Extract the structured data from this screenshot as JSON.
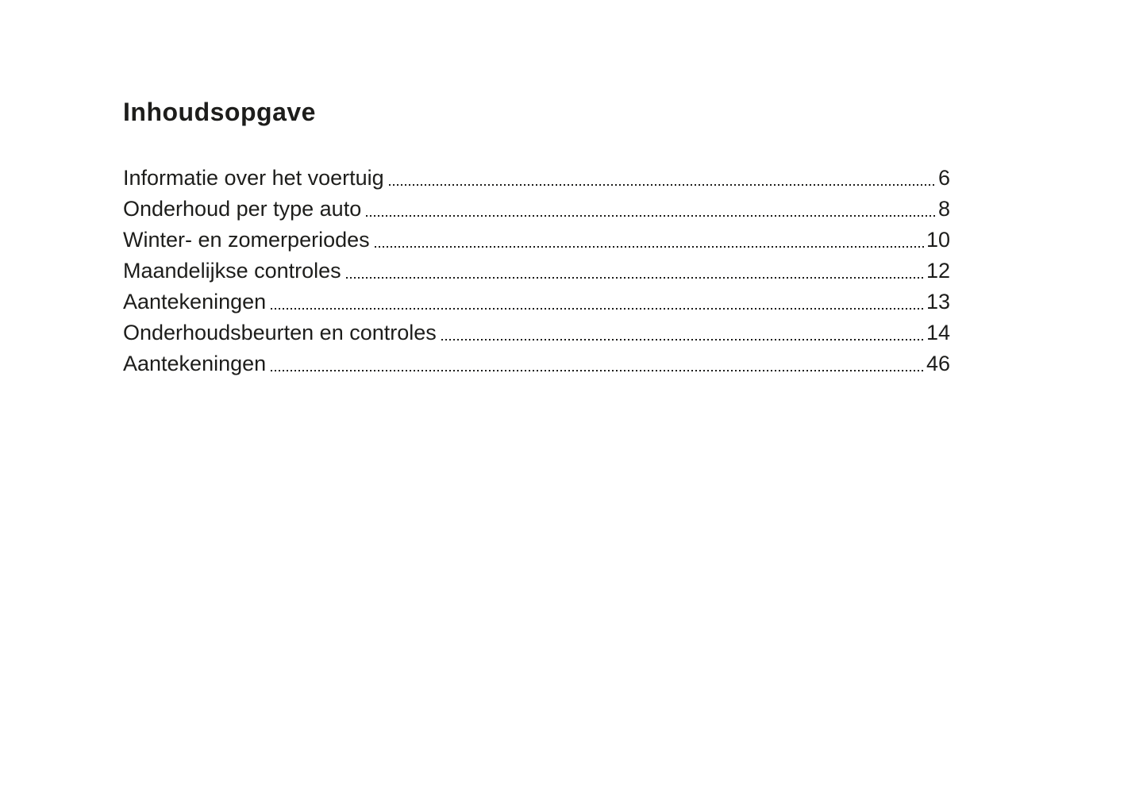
{
  "page": {
    "title": "Inhoudsopgave",
    "toc_entries": [
      {
        "label": "Informatie over het voertuig",
        "page": "6"
      },
      {
        "label": "Onderhoud per type auto",
        "page": "8"
      },
      {
        "label": "Winter- en zomerperiodes",
        "page": "10"
      },
      {
        "label": "Maandelijkse controles",
        "page": "12"
      },
      {
        "label": "Aantekeningen",
        "page": "13"
      },
      {
        "label": "Onderhoudsbeurten en controles",
        "page": "14"
      },
      {
        "label": "Aantekeningen",
        "page": "46"
      }
    ],
    "colors": {
      "text": "#1d1d1b",
      "background": "#ffffff"
    }
  }
}
